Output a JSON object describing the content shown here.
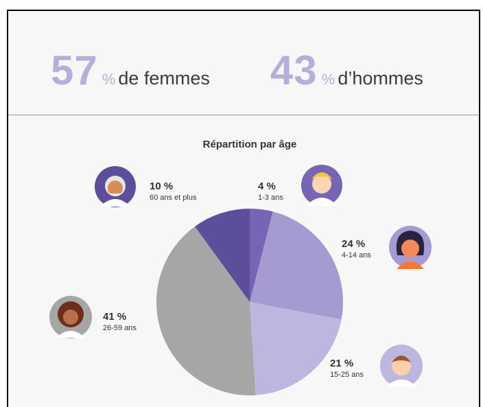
{
  "header": {
    "stats": [
      {
        "number": "57",
        "unit": "%",
        "label": "de femmes"
      },
      {
        "number": "43",
        "unit": "%",
        "label": "d’hommes"
      }
    ]
  },
  "chart_data": {
    "type": "pie",
    "title": "Répartition par âge",
    "categories": [
      "1-3 ans",
      "4-14 ans",
      "15-25 ans",
      "26-59 ans",
      "60 ans et plus"
    ],
    "values": [
      4,
      24,
      21,
      41,
      10
    ],
    "value_labels": [
      "4 %",
      "24 %",
      "21 %",
      "41 %",
      "10 %"
    ],
    "colors": [
      "#7565b4",
      "#a59bd0",
      "#bdb6de",
      "#a6a6a6",
      "#5d4e9c"
    ]
  }
}
